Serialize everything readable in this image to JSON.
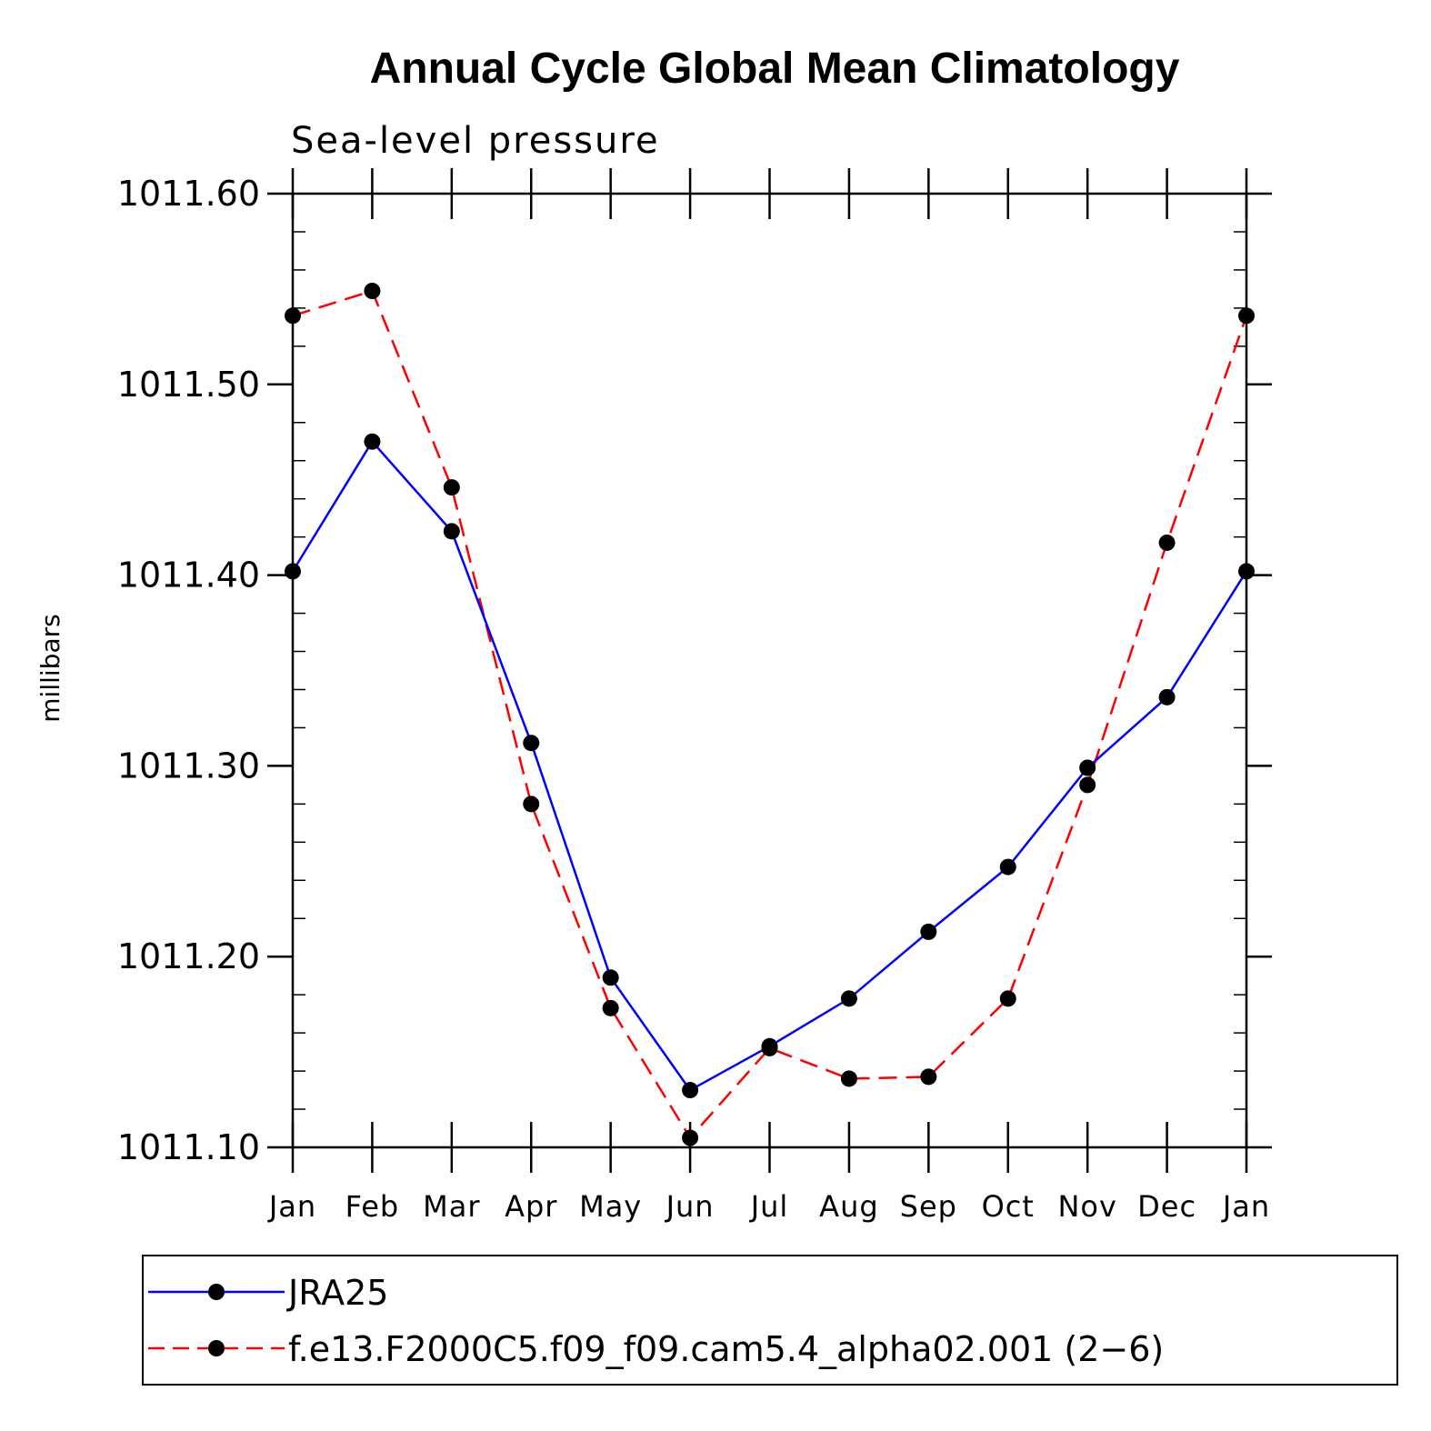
{
  "chart_data": {
    "type": "line",
    "title": "Annual Cycle Global Mean Climatology",
    "subtitle": "Sea-level pressure",
    "xlabel": "",
    "ylabel": "millibars",
    "categories": [
      "Jan",
      "Feb",
      "Mar",
      "Apr",
      "May",
      "Jun",
      "Jul",
      "Aug",
      "Sep",
      "Oct",
      "Nov",
      "Dec",
      "Jan"
    ],
    "ylim": [
      1011.1,
      1011.6
    ],
    "yticks": [
      "1011.10",
      "1011.20",
      "1011.30",
      "1011.40",
      "1011.50",
      "1011.60"
    ],
    "yticks_values": [
      1011.1,
      1011.2,
      1011.3,
      1011.4,
      1011.5,
      1011.6
    ],
    "grid": false,
    "legend_position": "bottom",
    "series": [
      {
        "name": "JRA25",
        "color": "#0000ff",
        "style": "solid",
        "marker": "circle",
        "values": [
          1011.402,
          1011.47,
          1011.423,
          1011.312,
          1011.189,
          1011.13,
          1011.153,
          1011.178,
          1011.213,
          1011.247,
          1011.299,
          1011.336,
          1011.402
        ]
      },
      {
        "name": "f.e13.F2000C5.f09_f09.cam5.4_alpha02.001 (2−6)",
        "color": "#ff0000",
        "style": "dashed",
        "marker": "circle",
        "values": [
          1011.536,
          1011.549,
          1011.446,
          1011.28,
          1011.173,
          1011.105,
          1011.152,
          1011.136,
          1011.137,
          1011.178,
          1011.29,
          1011.417,
          1011.536
        ]
      }
    ]
  }
}
